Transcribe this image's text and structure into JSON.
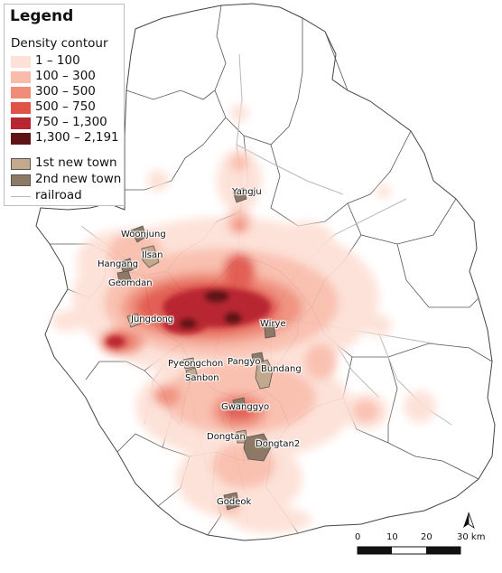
{
  "legend": {
    "title": "Legend",
    "subtitle": "Density contour",
    "classes": [
      {
        "label": "1 – 100",
        "color": "#fde0d6"
      },
      {
        "label": "100 – 300",
        "color": "#f9bcaa"
      },
      {
        "label": "300 – 500",
        "color": "#f08c78"
      },
      {
        "label": "500 – 750",
        "color": "#e05347"
      },
      {
        "label": "750 – 1,300",
        "color": "#b82630"
      },
      {
        "label": "1,300 – 2,191",
        "color": "#5e1414"
      }
    ],
    "first_new_town": {
      "label": "1st  new town",
      "color": "#c2a98e"
    },
    "second_new_town": {
      "label": "2nd new town",
      "color": "#8d7966"
    },
    "railroad": {
      "label": "railroad",
      "color": "#b9b9b9"
    }
  },
  "places": {
    "yangju": "Yangju",
    "woonjung": "Woonjung",
    "ilsan": "Ilsan",
    "hangang": "Hangang",
    "geomdan": "Geomdan",
    "jungdong": "Jungdong",
    "wirye": "Wirye",
    "pyeongchon": "Pyeongchon",
    "sanbon": "Sanbon",
    "pangyo": "Pangyo",
    "bundang": "Bundang",
    "gwanggyo": "Gwanggyo",
    "dongtan": "Dongtan",
    "dongtan2": "Dongtan2",
    "godeok": "Godeok"
  },
  "scale_bar": {
    "ticks": [
      "0",
      "10",
      "20",
      "30 km"
    ]
  },
  "north_icon": "north-arrow-icon"
}
